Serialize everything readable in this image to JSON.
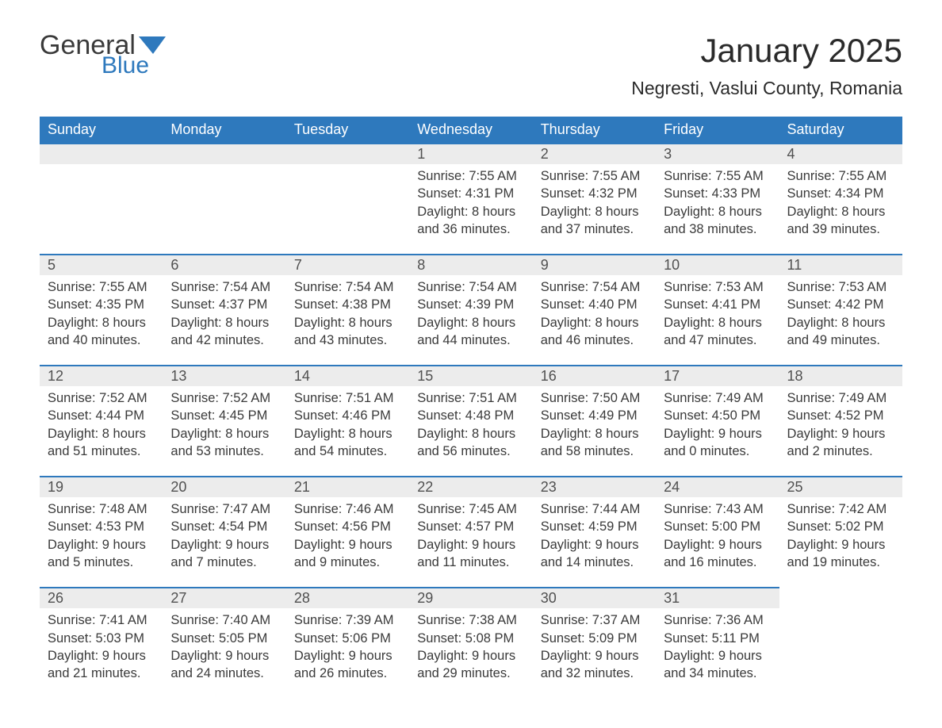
{
  "brand": {
    "word1": "General",
    "word2": "Blue",
    "flag_color": "#2e79bd"
  },
  "title": "January 2025",
  "location": "Negresti, Vaslui County, Romania",
  "header_bg": "#2e79bd",
  "header_fg": "#ffffff",
  "daynum_bg": "#ececec",
  "daynum_border": "#2e79bd",
  "page_bg": "#ffffff",
  "text_color": "#3a3a3a",
  "days_of_week": [
    "Sunday",
    "Monday",
    "Tuesday",
    "Wednesday",
    "Thursday",
    "Friday",
    "Saturday"
  ],
  "weeks": [
    [
      null,
      null,
      null,
      {
        "n": "1",
        "sr": "7:55 AM",
        "ss": "4:31 PM",
        "dl": "8 hours and 36 minutes."
      },
      {
        "n": "2",
        "sr": "7:55 AM",
        "ss": "4:32 PM",
        "dl": "8 hours and 37 minutes."
      },
      {
        "n": "3",
        "sr": "7:55 AM",
        "ss": "4:33 PM",
        "dl": "8 hours and 38 minutes."
      },
      {
        "n": "4",
        "sr": "7:55 AM",
        "ss": "4:34 PM",
        "dl": "8 hours and 39 minutes."
      }
    ],
    [
      {
        "n": "5",
        "sr": "7:55 AM",
        "ss": "4:35 PM",
        "dl": "8 hours and 40 minutes."
      },
      {
        "n": "6",
        "sr": "7:54 AM",
        "ss": "4:37 PM",
        "dl": "8 hours and 42 minutes."
      },
      {
        "n": "7",
        "sr": "7:54 AM",
        "ss": "4:38 PM",
        "dl": "8 hours and 43 minutes."
      },
      {
        "n": "8",
        "sr": "7:54 AM",
        "ss": "4:39 PM",
        "dl": "8 hours and 44 minutes."
      },
      {
        "n": "9",
        "sr": "7:54 AM",
        "ss": "4:40 PM",
        "dl": "8 hours and 46 minutes."
      },
      {
        "n": "10",
        "sr": "7:53 AM",
        "ss": "4:41 PM",
        "dl": "8 hours and 47 minutes."
      },
      {
        "n": "11",
        "sr": "7:53 AM",
        "ss": "4:42 PM",
        "dl": "8 hours and 49 minutes."
      }
    ],
    [
      {
        "n": "12",
        "sr": "7:52 AM",
        "ss": "4:44 PM",
        "dl": "8 hours and 51 minutes."
      },
      {
        "n": "13",
        "sr": "7:52 AM",
        "ss": "4:45 PM",
        "dl": "8 hours and 53 minutes."
      },
      {
        "n": "14",
        "sr": "7:51 AM",
        "ss": "4:46 PM",
        "dl": "8 hours and 54 minutes."
      },
      {
        "n": "15",
        "sr": "7:51 AM",
        "ss": "4:48 PM",
        "dl": "8 hours and 56 minutes."
      },
      {
        "n": "16",
        "sr": "7:50 AM",
        "ss": "4:49 PM",
        "dl": "8 hours and 58 minutes."
      },
      {
        "n": "17",
        "sr": "7:49 AM",
        "ss": "4:50 PM",
        "dl": "9 hours and 0 minutes."
      },
      {
        "n": "18",
        "sr": "7:49 AM",
        "ss": "4:52 PM",
        "dl": "9 hours and 2 minutes."
      }
    ],
    [
      {
        "n": "19",
        "sr": "7:48 AM",
        "ss": "4:53 PM",
        "dl": "9 hours and 5 minutes."
      },
      {
        "n": "20",
        "sr": "7:47 AM",
        "ss": "4:54 PM",
        "dl": "9 hours and 7 minutes."
      },
      {
        "n": "21",
        "sr": "7:46 AM",
        "ss": "4:56 PM",
        "dl": "9 hours and 9 minutes."
      },
      {
        "n": "22",
        "sr": "7:45 AM",
        "ss": "4:57 PM",
        "dl": "9 hours and 11 minutes."
      },
      {
        "n": "23",
        "sr": "7:44 AM",
        "ss": "4:59 PM",
        "dl": "9 hours and 14 minutes."
      },
      {
        "n": "24",
        "sr": "7:43 AM",
        "ss": "5:00 PM",
        "dl": "9 hours and 16 minutes."
      },
      {
        "n": "25",
        "sr": "7:42 AM",
        "ss": "5:02 PM",
        "dl": "9 hours and 19 minutes."
      }
    ],
    [
      {
        "n": "26",
        "sr": "7:41 AM",
        "ss": "5:03 PM",
        "dl": "9 hours and 21 minutes."
      },
      {
        "n": "27",
        "sr": "7:40 AM",
        "ss": "5:05 PM",
        "dl": "9 hours and 24 minutes."
      },
      {
        "n": "28",
        "sr": "7:39 AM",
        "ss": "5:06 PM",
        "dl": "9 hours and 26 minutes."
      },
      {
        "n": "29",
        "sr": "7:38 AM",
        "ss": "5:08 PM",
        "dl": "9 hours and 29 minutes."
      },
      {
        "n": "30",
        "sr": "7:37 AM",
        "ss": "5:09 PM",
        "dl": "9 hours and 32 minutes."
      },
      {
        "n": "31",
        "sr": "7:36 AM",
        "ss": "5:11 PM",
        "dl": "9 hours and 34 minutes."
      },
      null
    ]
  ],
  "labels": {
    "sunrise": "Sunrise:",
    "sunset": "Sunset:",
    "daylight": "Daylight:"
  }
}
